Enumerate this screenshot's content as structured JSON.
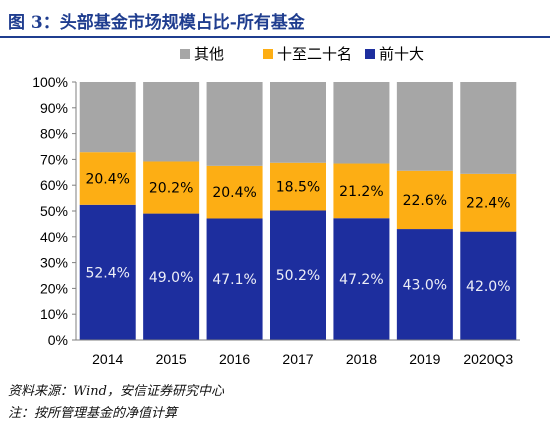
{
  "header": {
    "title": "图 3：头部基金市场规模占比-所有基金"
  },
  "chart_data": {
    "type": "bar",
    "stacked": true,
    "percent_stacked": true,
    "categories": [
      "2014",
      "2015",
      "2016",
      "2017",
      "2018",
      "2019",
      "2020Q3"
    ],
    "series": [
      {
        "name": "前十大",
        "color": "#1d2e9e",
        "label_color": "#ffffff",
        "label_font": "light",
        "values": [
          52.4,
          49.0,
          47.1,
          50.2,
          47.2,
          43.0,
          42.0
        ],
        "labels": [
          "52.4%",
          "49.0%",
          "47.1%",
          "50.2%",
          "47.2%",
          "43.0%",
          "42.0%"
        ]
      },
      {
        "name": "十至二十名",
        "color": "#fdae14",
        "label_color": "#000000",
        "label_font": "normal",
        "values": [
          20.4,
          20.2,
          20.4,
          18.5,
          21.2,
          22.6,
          22.4
        ],
        "labels": [
          "20.4%",
          "20.2%",
          "20.4%",
          "18.5%",
          "21.2%",
          "22.6%",
          "22.4%"
        ]
      },
      {
        "name": "其他",
        "color": "#a6a6a6",
        "values": [
          27.2,
          30.8,
          32.5,
          31.3,
          31.6,
          34.4,
          35.6
        ],
        "labels": []
      }
    ],
    "legend_order": [
      "其他",
      "十至二十名",
      "前十大"
    ],
    "legend_position": "top",
    "ylim": [
      0,
      100
    ],
    "yticks": [
      "0%",
      "10%",
      "20%",
      "30%",
      "40%",
      "50%",
      "60%",
      "70%",
      "80%",
      "90%",
      "100%"
    ],
    "grid": false
  },
  "footer": {
    "source": "资料来源：Wind，安信证券研究中心",
    "note": "注：按所管理基金的净值计算"
  }
}
